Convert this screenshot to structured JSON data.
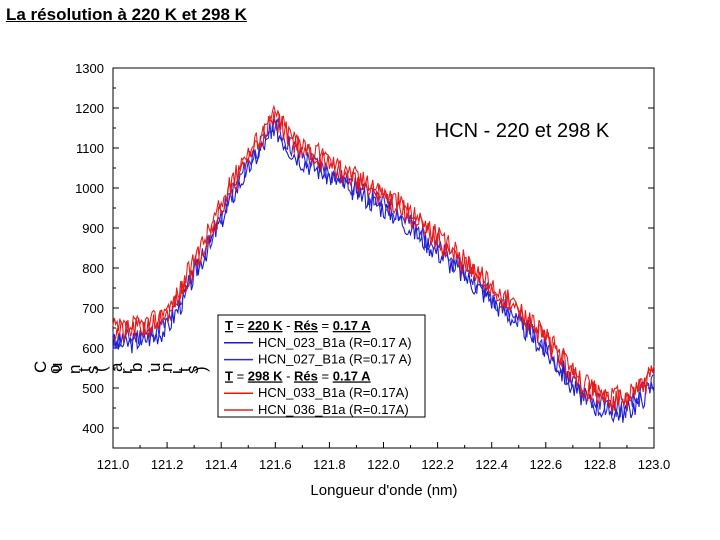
{
  "slide": {
    "title": "La résolution à 220 K et 298 K"
  },
  "chart_data": {
    "type": "line",
    "title": "HCN - 220 et 298 K",
    "xlabel": "Longueur d'onde (nm)",
    "ylabel": "Counts (arb. units)",
    "xlim": [
      121.0,
      123.0
    ],
    "ylim": [
      350,
      1300
    ],
    "xticks": [
      "121.0",
      "121.2",
      "121.4",
      "121.6",
      "121.8",
      "122.0",
      "122.2",
      "122.4",
      "122.6",
      "122.8",
      "123.0"
    ],
    "yticks": [
      "400",
      "500",
      "600",
      "700",
      "800",
      "900",
      "1000",
      "1100",
      "1200",
      "1300"
    ],
    "profile": {
      "x": [
        121.0,
        121.05,
        121.1,
        121.15,
        121.2,
        121.25,
        121.3,
        121.35,
        121.4,
        121.45,
        121.5,
        121.55,
        121.6,
        121.65,
        121.7,
        121.75,
        121.8,
        121.85,
        121.9,
        121.95,
        122.0,
        122.05,
        122.1,
        122.15,
        122.2,
        122.25,
        122.3,
        122.35,
        122.4,
        122.45,
        122.5,
        122.55,
        122.6,
        122.65,
        122.7,
        122.75,
        122.8,
        122.85,
        122.9,
        122.95,
        123.0
      ],
      "y": [
        620,
        620,
        630,
        640,
        660,
        720,
        790,
        860,
        930,
        1000,
        1060,
        1110,
        1160,
        1110,
        1080,
        1060,
        1040,
        1020,
        1000,
        980,
        960,
        940,
        910,
        880,
        850,
        820,
        790,
        760,
        730,
        700,
        670,
        640,
        600,
        560,
        510,
        480,
        460,
        450,
        450,
        480,
        520
      ]
    },
    "series": [
      {
        "name": "HCN_023_B1a (R=0.17 A)",
        "color": "#1a1acc",
        "offset": -10,
        "noise": 28,
        "seed": 3
      },
      {
        "name": "HCN_027_B1a (R=0.17 A)",
        "color": "#2a2ad8",
        "offset": 0,
        "noise": 26,
        "seed": 11
      },
      {
        "name": "HCN_033_B1a (R=0.17A)",
        "color": "#ee1111",
        "offset": 18,
        "noise": 30,
        "seed": 21
      },
      {
        "name": "HCN_036_B1a (R=0.17A)",
        "color": "#e02020",
        "offset": 28,
        "noise": 28,
        "seed": 37
      }
    ],
    "legend": {
      "groups": [
        {
          "header": {
            "t": "T",
            "eq": " = ",
            "val": "220",
            "unit": "K",
            "dash": " - ",
            "res": "Rés",
            "eq2": " = ",
            "rv": "0.17",
            "ru": "A"
          },
          "series": [
            0,
            1
          ]
        },
        {
          "header": {
            "t": "T",
            "eq": " = ",
            "val": "298",
            "unit": "K",
            "dash": " - ",
            "res": "Rés",
            "eq2": " = ",
            "rv": "0.17",
            "ru": "A"
          },
          "series": [
            2,
            3
          ]
        }
      ]
    },
    "overlay_fragments": [
      "C",
      "o",
      "u",
      "n",
      "t",
      "s",
      "(",
      "a",
      "r",
      "b",
      ".",
      "u",
      "n",
      "i",
      "t",
      "s",
      ")"
    ]
  }
}
